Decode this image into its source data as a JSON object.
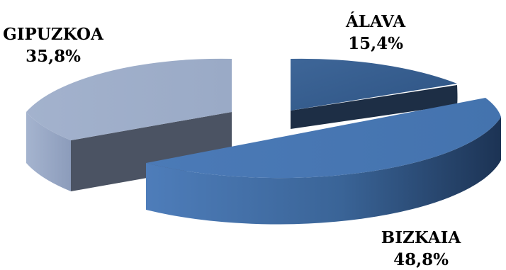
{
  "chart_data": {
    "type": "pie",
    "style": "3d-exploded",
    "categories": [
      "ÁLAVA",
      "BIZKAIA",
      "GIPUZKOA"
    ],
    "values": [
      15.4,
      48.8,
      35.8
    ],
    "value_labels": [
      "15,4%",
      "48,8%",
      "35,8%"
    ],
    "colors": {
      "ÁLAVA": "#3A6294",
      "BIZKAIA": "#4A79B5",
      "GIPUZKOA": "#9EADC9"
    },
    "legend": "none",
    "title": ""
  }
}
